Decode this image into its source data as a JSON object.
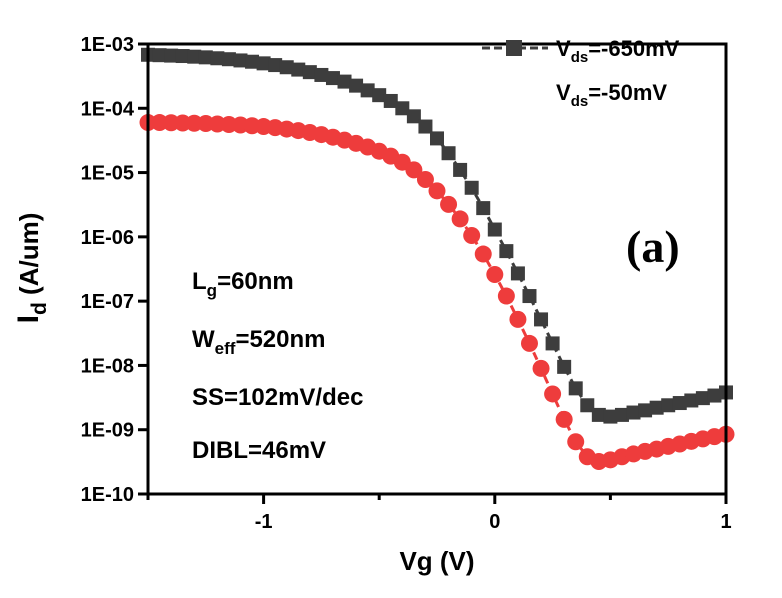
{
  "chart_data": {
    "type": "scatter",
    "xlabel": "Vg (V)",
    "ylabel_main": "I",
    "ylabel_sub": "d",
    "ylabel_unit": " (A/um)",
    "xlim": [
      -1.5,
      1.0
    ],
    "ylim_log10": [
      -10,
      -3
    ],
    "yscale": "log",
    "x_ticks": [
      -1,
      0,
      1
    ],
    "x_tick_labels": [
      "-1",
      "0",
      "1"
    ],
    "y_ticks_log10": [
      -3,
      -4,
      -5,
      -6,
      -7,
      -8,
      -9,
      -10
    ],
    "y_tick_labels": [
      "1E-03",
      "1E-04",
      "1E-05",
      "1E-06",
      "1E-07",
      "1E-08",
      "1E-09",
      "1E-10"
    ],
    "grid": false,
    "legend_position": "top-right",
    "panel_label": "(a)",
    "annotations": [
      {
        "main": "L",
        "sub": "g",
        "rest": "=60nm"
      },
      {
        "main": "W",
        "sub": "eff",
        "rest": "=520nm"
      },
      {
        "main": "",
        "sub": "",
        "rest": "SS=102mV/dec"
      },
      {
        "main": "",
        "sub": "",
        "rest": "DIBL=46mV"
      }
    ],
    "series": [
      {
        "name_main": "V",
        "name_sub": "ds",
        "name_rest": "=-650mV",
        "marker": "square",
        "color": "#3d3d3d",
        "x": [
          -1.5,
          -1.45,
          -1.4,
          -1.35,
          -1.3,
          -1.25,
          -1.2,
          -1.15,
          -1.1,
          -1.05,
          -1.0,
          -0.95,
          -0.9,
          -0.85,
          -0.8,
          -0.75,
          -0.7,
          -0.65,
          -0.6,
          -0.55,
          -0.5,
          -0.45,
          -0.4,
          -0.35,
          -0.3,
          -0.25,
          -0.2,
          -0.15,
          -0.1,
          -0.05,
          0.0,
          0.05,
          0.1,
          0.15,
          0.2,
          0.25,
          0.3,
          0.35,
          0.4,
          0.45,
          0.5,
          0.55,
          0.6,
          0.65,
          0.7,
          0.75,
          0.8,
          0.85,
          0.9,
          0.95,
          1.0
        ],
        "y": [
          0.00068,
          0.00067,
          0.00066,
          0.00065,
          0.000635,
          0.00062,
          0.0006,
          0.00058,
          0.000555,
          0.00053,
          0.0005,
          0.00047,
          0.000435,
          0.0004,
          0.000365,
          0.00033,
          0.000295,
          0.00026,
          0.000225,
          0.00019,
          0.00016,
          0.00013,
          0.0001,
          7.5e-05,
          5.2e-05,
          3.4e-05,
          2e-05,
          1.1e-05,
          5.8e-06,
          2.8e-06,
          1.3e-06,
          6e-07,
          2.7e-07,
          1.2e-07,
          5.2e-08,
          2.2e-08,
          9.5e-09,
          4.4e-09,
          2.4e-09,
          1.7e-09,
          1.6e-09,
          1.7e-09,
          1.85e-09,
          2e-09,
          2.2e-09,
          2.4e-09,
          2.6e-09,
          2.85e-09,
          3.1e-09,
          3.4e-09,
          3.8e-09
        ]
      },
      {
        "name_main": "V",
        "name_sub": "ds",
        "name_rest": "=-50mV",
        "marker": "circle",
        "color": "#ee3c3c",
        "x": [
          -1.5,
          -1.45,
          -1.4,
          -1.35,
          -1.3,
          -1.25,
          -1.2,
          -1.15,
          -1.1,
          -1.05,
          -1.0,
          -0.95,
          -0.9,
          -0.85,
          -0.8,
          -0.75,
          -0.7,
          -0.65,
          -0.6,
          -0.55,
          -0.5,
          -0.45,
          -0.4,
          -0.35,
          -0.3,
          -0.25,
          -0.2,
          -0.15,
          -0.1,
          -0.05,
          0.0,
          0.05,
          0.1,
          0.15,
          0.2,
          0.25,
          0.3,
          0.35,
          0.4,
          0.45,
          0.5,
          0.55,
          0.6,
          0.65,
          0.7,
          0.75,
          0.8,
          0.85,
          0.9,
          0.95,
          1.0
        ],
        "y": [
          6e-05,
          6e-05,
          5.95e-05,
          5.9e-05,
          5.85e-05,
          5.8e-05,
          5.7e-05,
          5.6e-05,
          5.5e-05,
          5.35e-05,
          5.2e-05,
          5e-05,
          4.75e-05,
          4.5e-05,
          4.2e-05,
          3.9e-05,
          3.55e-05,
          3.2e-05,
          2.85e-05,
          2.5e-05,
          2.15e-05,
          1.8e-05,
          1.45e-05,
          1.1e-05,
          7.8e-06,
          5.2e-06,
          3.2e-06,
          1.9e-06,
          1.05e-06,
          5.4e-07,
          2.6e-07,
          1.2e-07,
          5.2e-08,
          2.2e-08,
          9e-09,
          3.6e-09,
          1.45e-09,
          6.5e-10,
          3.8e-10,
          3.2e-10,
          3.4e-10,
          3.8e-10,
          4.2e-10,
          4.6e-10,
          5e-10,
          5.5e-10,
          6e-10,
          6.6e-10,
          7.2e-10,
          7.8e-10,
          8.5e-10
        ]
      }
    ]
  }
}
